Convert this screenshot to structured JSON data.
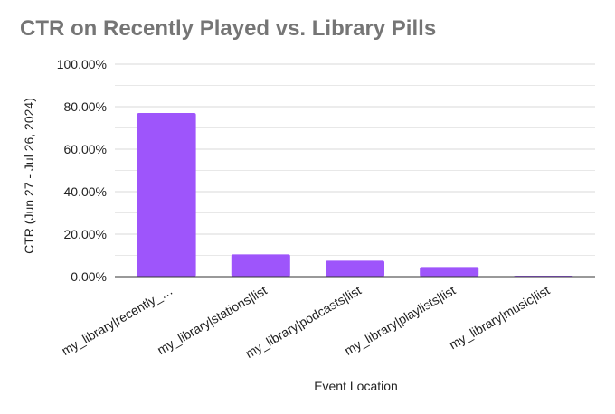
{
  "chart_data": {
    "type": "bar",
    "title": "CTR on Recently Played vs. Library Pills",
    "xlabel": "Event Location",
    "ylabel": "CTR (Jun 27 - Jul 26, 2024)",
    "categories": [
      "my_library|recently_…",
      "my_library|stations|list",
      "my_library|podcasts|list",
      "my_library|playlists|list",
      "my_library|music|list"
    ],
    "values": [
      77.0,
      10.5,
      7.5,
      4.5,
      0.3
    ],
    "ylim": [
      0,
      100
    ],
    "yticks": [
      "0.00%",
      "20.00%",
      "40.00%",
      "60.00%",
      "80.00%",
      "100.00%"
    ],
    "grid": true,
    "legend": "none",
    "bar_color": "#9e55fb"
  }
}
